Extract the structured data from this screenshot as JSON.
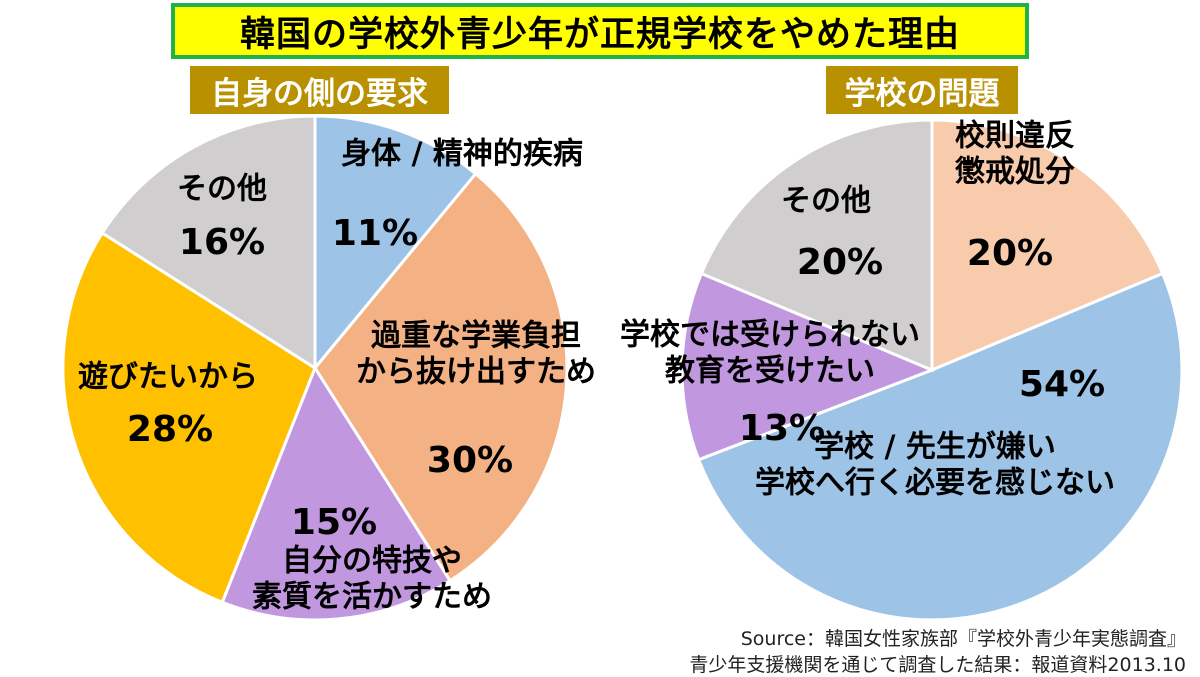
{
  "title": "韓国の学校外青少年が正規学校をやめた理由",
  "colors": {
    "title_bg": "#ffff00",
    "title_border": "#22b04a",
    "subtitle_bg": "#b89000",
    "blue": "#9dc3e6",
    "peach": "#f4b183",
    "light_peach": "#f8cbad",
    "purple": "#c198e0",
    "orange": "#ffc000",
    "gray": "#d0cece"
  },
  "chart_data": [
    {
      "type": "pie",
      "title": "自身の側の要求",
      "slices": [
        {
          "label": [
            "身体 / 精神的疾病"
          ],
          "value": 11,
          "value_label": "11%",
          "color": "#9dc3e6"
        },
        {
          "label": [
            "過重な学業負担",
            "から抜け出すため"
          ],
          "value": 30,
          "value_label": "30%",
          "color": "#f4b183"
        },
        {
          "label": [
            "自分の特技や",
            "素質を活かすため"
          ],
          "value": 15,
          "value_label": "15%",
          "color": "#c198e0"
        },
        {
          "label": [
            "遊びたいから"
          ],
          "value": 28,
          "value_label": "28%",
          "color": "#ffc000"
        },
        {
          "label": [
            "その他"
          ],
          "value": 16,
          "value_label": "16%",
          "color": "#d0cece"
        }
      ]
    },
    {
      "type": "pie",
      "title": "学校の問題",
      "slices": [
        {
          "label": [
            "校則違反",
            "懲戒処分"
          ],
          "value": 20,
          "value_label": "20%",
          "color": "#f8cbad"
        },
        {
          "label": [
            "学校 / 先生が嫌い",
            "学校へ行く必要を感じない"
          ],
          "value": 54,
          "value_label": "54%",
          "color": "#9dc3e6"
        },
        {
          "label": [
            "学校では受けられない",
            "教育を受けたい"
          ],
          "value": 13,
          "value_label": "13%",
          "color": "#c198e0"
        },
        {
          "label": [
            "その他"
          ],
          "value": 20,
          "value_label": "20%",
          "color": "#d0cece"
        }
      ]
    }
  ],
  "source": {
    "line1": "Source：韓国女性家族部『学校外青少年実態調査』",
    "line2": "青少年支援機関を通じて調査した結果：報道資料2013.10"
  }
}
